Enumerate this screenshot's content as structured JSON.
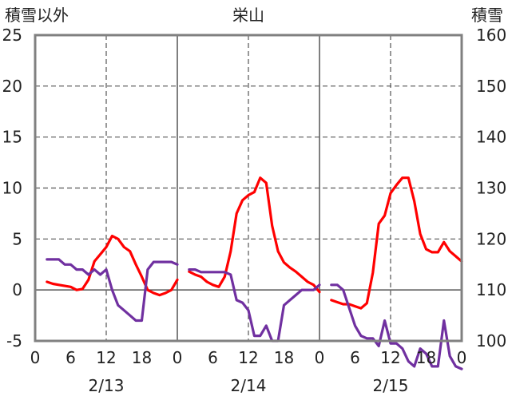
{
  "chart_data": {
    "type": "line",
    "title": "栄山",
    "left_axis": {
      "label": "積雪以外",
      "ylim": [
        -5,
        25
      ],
      "ticks": [
        25,
        20,
        15,
        10,
        5,
        0,
        -5
      ],
      "tick_labels": [
        "25",
        "20",
        "15",
        "10",
        "5",
        "0",
        "-5"
      ]
    },
    "right_axis": {
      "label": "積雪",
      "ylim": [
        100,
        160
      ],
      "ticks": [
        160,
        150,
        140,
        130,
        120,
        110,
        100
      ],
      "tick_labels": [
        "160",
        "150",
        "140",
        "130",
        "120",
        "110",
        "100"
      ]
    },
    "x_hours_per_day": 24,
    "x_tick_labels": [
      "0",
      "6",
      "12",
      "18",
      "0",
      "6",
      "12",
      "18",
      "0",
      "6",
      "12",
      "18",
      "0"
    ],
    "day_labels": [
      "2/13",
      "2/14",
      "2/15"
    ],
    "grid": true,
    "series": [
      {
        "axis": "left",
        "color": "#ff0000",
        "days": [
          {
            "x": [
              2,
              3,
              4,
              5,
              6,
              7,
              8,
              9,
              10,
              11,
              12,
              13,
              14,
              15,
              16,
              17,
              18,
              19,
              20,
              21,
              22,
              23,
              24
            ],
            "y": [
              0.8,
              0.6,
              0.5,
              0.4,
              0.3,
              0.0,
              0.1,
              1.0,
              2.8,
              3.5,
              4.2,
              5.3,
              5.0,
              4.2,
              3.8,
              2.5,
              1.3,
              0.0,
              -0.3,
              -0.5,
              -0.3,
              0.0,
              1.0
            ]
          },
          {
            "x": [
              2,
              3,
              4,
              5,
              6,
              7,
              8,
              9,
              10,
              11,
              12,
              13,
              14,
              15,
              16,
              17,
              18,
              19,
              20,
              21,
              22,
              23,
              24
            ],
            "y": [
              1.8,
              1.5,
              1.3,
              0.8,
              0.5,
              0.3,
              1.3,
              3.8,
              7.5,
              8.8,
              9.3,
              9.6,
              11.0,
              10.5,
              6.3,
              3.8,
              2.7,
              2.2,
              1.8,
              1.3,
              0.8,
              0.5,
              -0.2
            ]
          },
          {
            "x": [
              2,
              3,
              4,
              5,
              6,
              7,
              8,
              9,
              10,
              11,
              12,
              13,
              14,
              15,
              16,
              17,
              18,
              19,
              20,
              21,
              22,
              23,
              24
            ],
            "y": [
              -1.0,
              -1.2,
              -1.4,
              -1.4,
              -1.6,
              -1.8,
              -1.3,
              1.7,
              6.5,
              7.3,
              9.5,
              10.3,
              11.0,
              11.0,
              8.7,
              5.5,
              4.0,
              3.7,
              3.7,
              4.7,
              3.8,
              3.3,
              2.8
            ]
          }
        ]
      },
      {
        "axis": "right",
        "color": "#7030a0",
        "days": [
          {
            "x": [
              2,
              3,
              4,
              5,
              6,
              7,
              8,
              9,
              10,
              11,
              12,
              13,
              14,
              15,
              16,
              17,
              18,
              19,
              20,
              21,
              22,
              23,
              24
            ],
            "y": [
              116.0,
              116.0,
              116.0,
              115.0,
              115.0,
              114.0,
              114.0,
              113.0,
              114.0,
              113.0,
              114.0,
              110.0,
              107.0,
              106.0,
              105.0,
              104.0,
              104.0,
              114.0,
              115.5,
              115.5,
              115.5,
              115.5,
              115.0
            ]
          },
          {
            "x": [
              2,
              3,
              4,
              5,
              6,
              7,
              8,
              9,
              10,
              11,
              12,
              13,
              14,
              15,
              16,
              17,
              18,
              19,
              20,
              21,
              22,
              23,
              24
            ],
            "y": [
              114.0,
              114.0,
              113.5,
              113.5,
              113.5,
              113.5,
              113.5,
              113.0,
              108.0,
              107.5,
              106.0,
              101.0,
              101.0,
              103.0,
              100.0,
              100.0,
              107.0,
              108.0,
              109.0,
              110.0,
              110.0,
              110.0,
              111.0
            ]
          },
          {
            "x": [
              2,
              3,
              4,
              5,
              6,
              7,
              8,
              9,
              10,
              11,
              12,
              13,
              14,
              15,
              16,
              17,
              18,
              19,
              20,
              21,
              22,
              23,
              24
            ],
            "y": [
              111.0,
              111.0,
              110.0,
              106.5,
              103.0,
              101.0,
              100.5,
              100.5,
              99.0,
              104.0,
              99.5,
              99.5,
              98.5,
              96.0,
              95.0,
              98.5,
              97.5,
              95.0,
              95.0,
              104.0,
              97.0,
              95.0,
              94.5
            ]
          }
        ]
      }
    ]
  }
}
